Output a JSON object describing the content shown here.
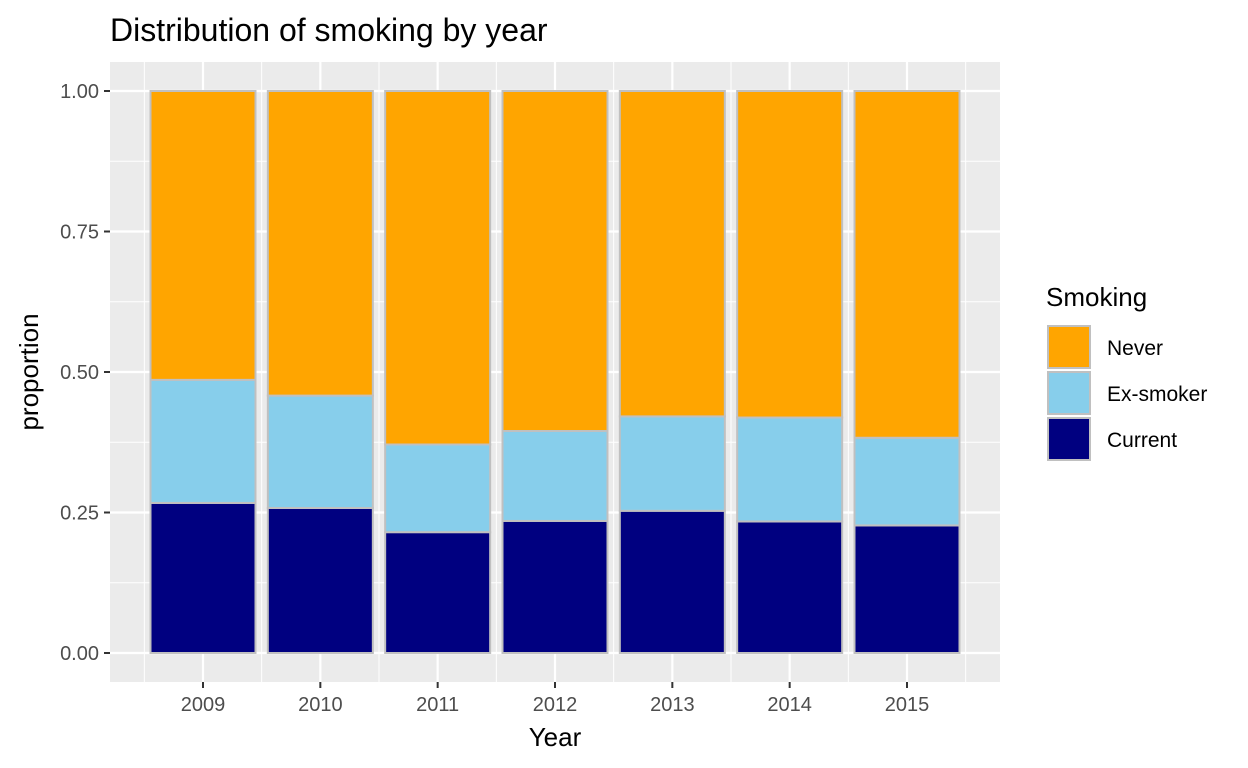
{
  "chart_data": {
    "type": "bar",
    "stacked": true,
    "title": "Distribution of smoking by year",
    "xlabel": "Year",
    "ylabel": "proportion",
    "ylim": [
      0,
      1
    ],
    "yticks": [
      "0.00",
      "0.25",
      "0.50",
      "0.75",
      "1.00"
    ],
    "categories": [
      "2009",
      "2010",
      "2011",
      "2012",
      "2013",
      "2014",
      "2015"
    ],
    "series": [
      {
        "name": "Current",
        "color": "#000080",
        "values": [
          0.267,
          0.258,
          0.215,
          0.235,
          0.253,
          0.234,
          0.227
        ]
      },
      {
        "name": "Ex-smoker",
        "color": "#87ceeb",
        "values": [
          0.219,
          0.2,
          0.156,
          0.16,
          0.168,
          0.185,
          0.156
        ]
      },
      {
        "name": "Never",
        "color": "#ffa500",
        "values": [
          0.514,
          0.542,
          0.629,
          0.605,
          0.579,
          0.581,
          0.617
        ]
      }
    ],
    "legend": {
      "title": "Smoking",
      "placement": "right",
      "entries": [
        "Never",
        "Ex-smoker",
        "Current"
      ]
    },
    "grid": true,
    "panel_background": "#ebebeb",
    "bar_outline": "#c0c0c0"
  }
}
